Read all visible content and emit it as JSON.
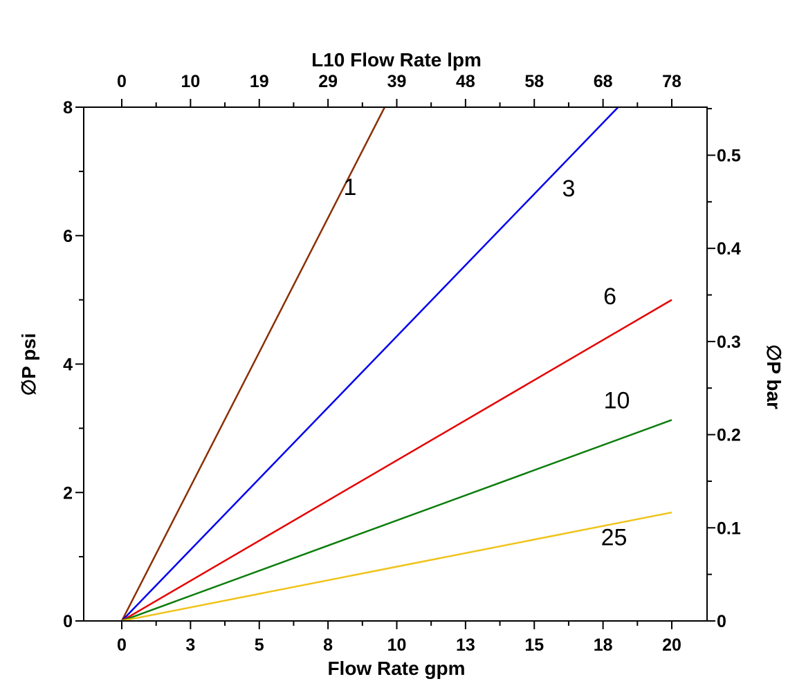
{
  "page": {
    "background": "#ffffff",
    "text_color": "#000000"
  },
  "chart_data": {
    "type": "line",
    "title": "L10 Flow Rate lpm",
    "xlabel": "Flow Rate gpm",
    "ylabel": "∅P psi",
    "ylabel_right": "∅P bar",
    "grid": false,
    "legend": "inline line labels (micron ratings)",
    "x_range_gpm": [
      0,
      20
    ],
    "y_range_psi": [
      0,
      8
    ],
    "x_axis_bottom": {
      "title": "Flow Rate gpm",
      "tick_values_gpm": [
        0,
        2.5,
        5,
        7.5,
        10,
        12.5,
        15,
        17.5,
        20
      ],
      "tick_labels": [
        "0",
        "3",
        "5",
        "8",
        "10",
        "13",
        "15",
        "18",
        "20"
      ],
      "minor_tick_values_gpm": [
        1.25,
        3.75,
        6.25,
        8.75,
        11.25,
        13.75,
        16.25,
        18.75
      ]
    },
    "x_axis_top": {
      "title": "L10 Flow Rate lpm",
      "tick_values_gpm": [
        0,
        2.5,
        5,
        7.5,
        10,
        12.5,
        15,
        17.5,
        20
      ],
      "tick_labels": [
        "0",
        "10",
        "19",
        "29",
        "39",
        "48",
        "58",
        "68",
        "78"
      ]
    },
    "y_axis_left": {
      "title": "∅P psi",
      "tick_values_psi": [
        0,
        2,
        4,
        6,
        8
      ],
      "tick_labels": [
        "0",
        "2",
        "4",
        "6",
        "8"
      ],
      "minor_tick_values_psi": [
        1,
        3,
        5,
        7
      ]
    },
    "y_axis_right": {
      "title": "∅P bar",
      "tick_values_bar": [
        0,
        0.1,
        0.2,
        0.3,
        0.4,
        0.5
      ],
      "tick_labels": [
        "0",
        "0.1",
        "0.2",
        "0.3",
        "0.4",
        "0.5"
      ],
      "minor_tick_values_bar": [
        0.05,
        0.15,
        0.25,
        0.35,
        0.45,
        0.55
      ],
      "psi_per_bar": 14.5038
    },
    "series": [
      {
        "label": "1",
        "color": "#8B2F00",
        "points_gpm_psi": [
          [
            0,
            0
          ],
          [
            9.56,
            8
          ]
        ],
        "label_pos_gpm_psi": [
          8.3,
          6.76
        ]
      },
      {
        "label": "3",
        "color": "#0000EE",
        "points_gpm_psi": [
          [
            0,
            0
          ],
          [
            18.05,
            8
          ]
        ],
        "label_pos_gpm_psi": [
          16.25,
          6.74
        ]
      },
      {
        "label": "6",
        "color": "#E60000",
        "points_gpm_psi": [
          [
            0,
            0
          ],
          [
            20,
            5.0
          ]
        ],
        "label_pos_gpm_psi": [
          17.75,
          5.06
        ]
      },
      {
        "label": "10",
        "color": "#0B7D0B",
        "points_gpm_psi": [
          [
            0,
            0
          ],
          [
            20,
            3.13
          ]
        ],
        "label_pos_gpm_psi": [
          18.0,
          3.44
        ]
      },
      {
        "label": "25",
        "color": "#EFC319",
        "points_gpm_psi": [
          [
            0,
            0
          ],
          [
            20,
            1.69
          ]
        ],
        "label_pos_gpm_psi": [
          17.9,
          1.31
        ]
      }
    ]
  }
}
